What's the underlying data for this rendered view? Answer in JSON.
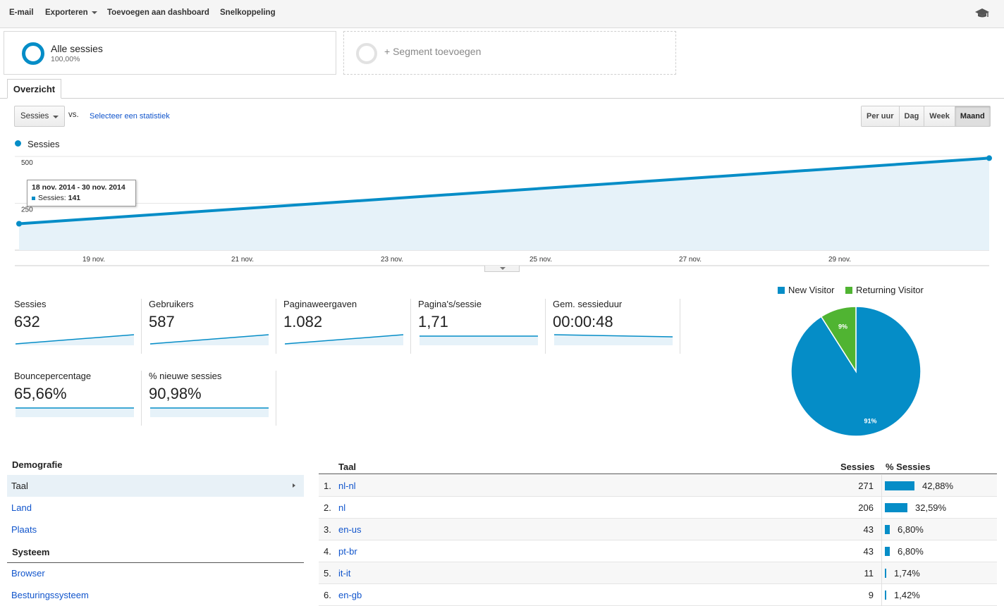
{
  "toolbar": {
    "email": "E-mail",
    "export": "Exporteren",
    "add_dashboard": "Toevoegen aan dashboard",
    "shortcut": "Snelkoppeling"
  },
  "segments": {
    "active_title": "Alle sessies",
    "active_pct": "100,00%",
    "add_label": "+ Segment toevoegen"
  },
  "tab_overview": "Overzicht",
  "chart_controls": {
    "metric": "Sessies",
    "vs": "vs.",
    "select_metric": "Selecteer een statistiek",
    "periods": [
      "Per uur",
      "Dag",
      "Week",
      "Maand"
    ],
    "active_period": "Maand"
  },
  "tooltip": {
    "date_range": "18 nov. 2014 - 30 nov. 2014",
    "label": "Sessies:",
    "value": "141"
  },
  "chart_data": {
    "type": "area",
    "series": [
      {
        "name": "Sessies",
        "color": "#058dc7"
      }
    ],
    "x": [
      "18 nov.",
      "30 nov."
    ],
    "values": [
      141,
      491
    ],
    "ylim": [
      0,
      500
    ],
    "yticks": [
      "500",
      "250"
    ],
    "xticks": [
      "19 nov.",
      "21 nov.",
      "23 nov.",
      "25 nov.",
      "27 nov.",
      "29 nov."
    ]
  },
  "metrics": [
    {
      "label": "Sessies",
      "value": "632",
      "trend": "up"
    },
    {
      "label": "Gebruikers",
      "value": "587",
      "trend": "up"
    },
    {
      "label": "Paginaweergaven",
      "value": "1.082",
      "trend": "up"
    },
    {
      "label": "Pagina's/sessie",
      "value": "1,71",
      "trend": "flat"
    },
    {
      "label": "Gem. sessieduur",
      "value": "00:00:48",
      "trend": "down"
    },
    {
      "label": "Bouncepercentage",
      "value": "65,66%",
      "trend": "flat"
    },
    {
      "label": "% nieuwe sessies",
      "value": "90,98%",
      "trend": "flat"
    }
  ],
  "pie": {
    "legend": [
      {
        "name": "New Visitor",
        "color": "#058dc7"
      },
      {
        "name": "Returning Visitor",
        "color": "#50b432"
      }
    ],
    "slices": [
      {
        "name": "New Visitor",
        "value": 91,
        "label": "91%",
        "color": "#058dc7"
      },
      {
        "name": "Returning Visitor",
        "value": 9,
        "label": "9%",
        "color": "#50b432"
      }
    ]
  },
  "nav": {
    "demo_head": "Demografie",
    "demo_items": [
      "Taal",
      "Land",
      "Plaats"
    ],
    "active_item": "Taal",
    "sys_head": "Systeem",
    "sys_items": [
      "Browser",
      "Besturingssysteem"
    ]
  },
  "table": {
    "col_lang": "Taal",
    "col_sessions": "Sessies",
    "col_pct": "% Sessies",
    "rows": [
      {
        "idx": "1.",
        "lang": "nl-nl",
        "sessions": "271",
        "pct": "42,88%",
        "share": 42.88
      },
      {
        "idx": "2.",
        "lang": "nl",
        "sessions": "206",
        "pct": "32,59%",
        "share": 32.59
      },
      {
        "idx": "3.",
        "lang": "en-us",
        "sessions": "43",
        "pct": "6,80%",
        "share": 6.8
      },
      {
        "idx": "4.",
        "lang": "pt-br",
        "sessions": "43",
        "pct": "6,80%",
        "share": 6.8
      },
      {
        "idx": "5.",
        "lang": "it-it",
        "sessions": "11",
        "pct": "1,74%",
        "share": 1.74
      },
      {
        "idx": "6.",
        "lang": "en-gb",
        "sessions": "9",
        "pct": "1,42%",
        "share": 1.42
      }
    ]
  }
}
